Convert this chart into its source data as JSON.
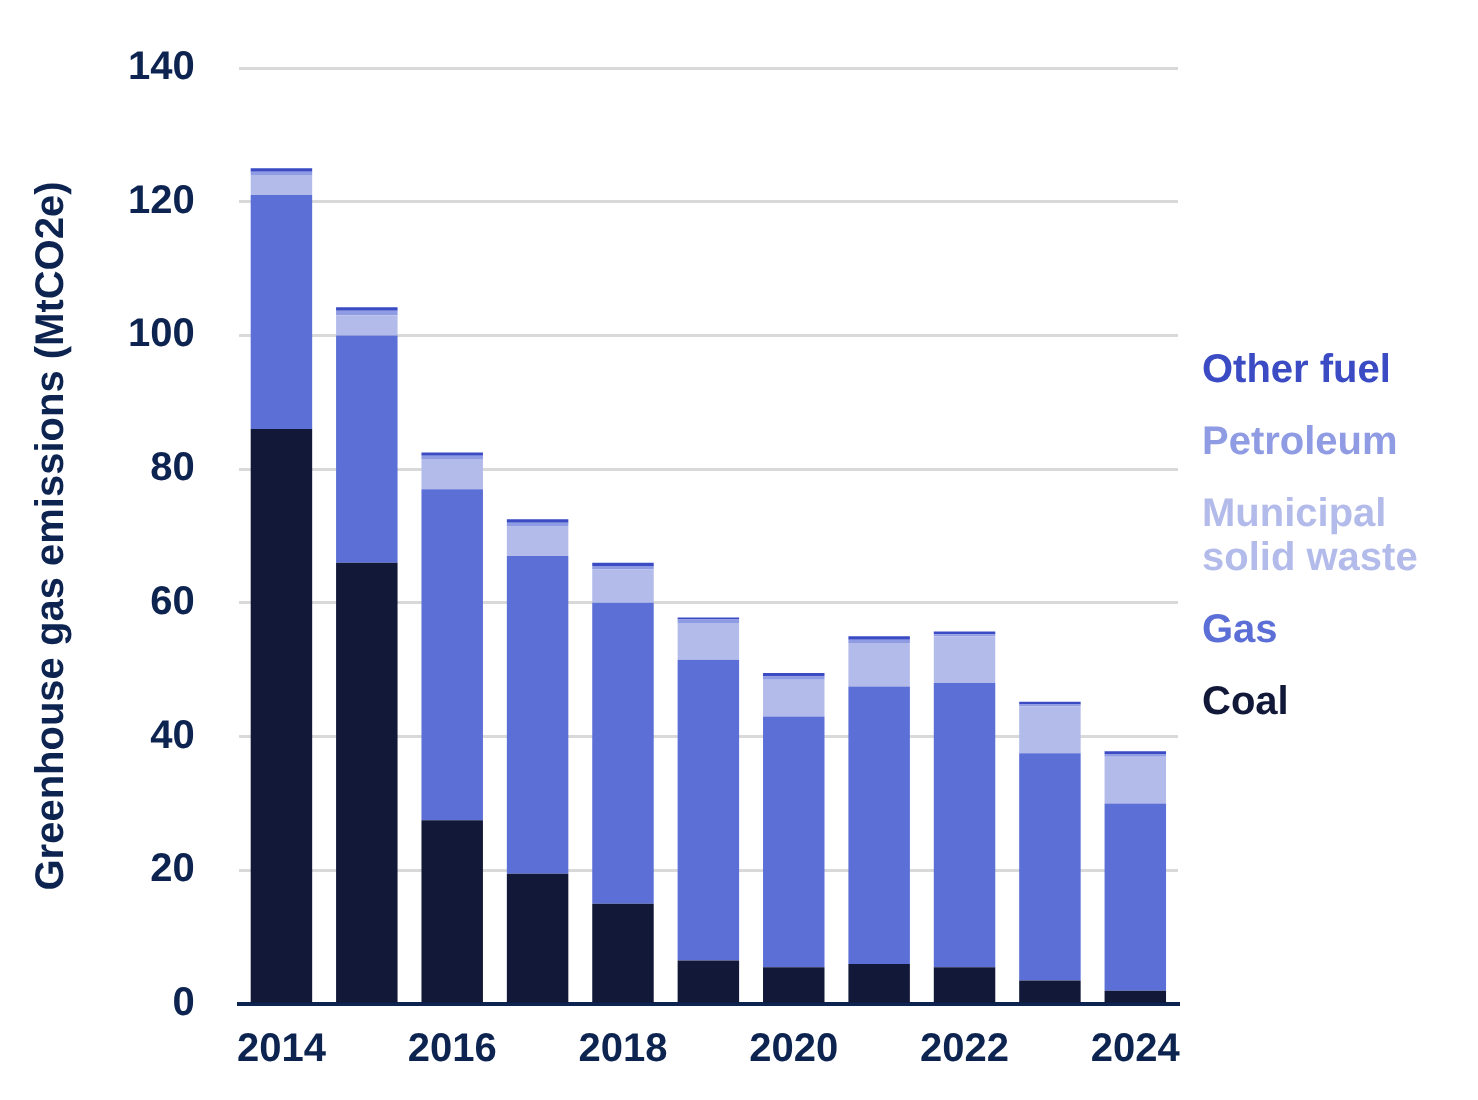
{
  "chart_data": {
    "type": "bar",
    "stacked": true,
    "ylabel": "Greenhouse gas emissions (MtCO2e)",
    "categories": [
      "2014",
      null,
      "2016",
      null,
      "2018",
      null,
      "2020",
      null,
      "2022",
      null,
      "2024"
    ],
    "series": [
      {
        "name": "Coal",
        "color": "#111838",
        "values": [
          86,
          66,
          27.5,
          19.5,
          15,
          6.5,
          5.5,
          6,
          5.5,
          3.5,
          2
        ]
      },
      {
        "name": "Gas",
        "color": "#5b6fd6",
        "values": [
          35,
          34,
          49.5,
          47.5,
          45,
          45,
          37.5,
          41.5,
          42.5,
          34,
          28
        ]
      },
      {
        "name": "Municipal solid waste",
        "color": "#b3bbeb",
        "values": [
          3,
          3,
          4.5,
          4.5,
          5,
          5.5,
          5.5,
          6.5,
          7,
          7,
          7
        ]
      },
      {
        "name": "Petroleum",
        "color": "#8f9be3",
        "values": [
          0.5,
          0.7,
          0.5,
          0.5,
          0.5,
          0.5,
          0.5,
          0.5,
          0.3,
          0.3,
          0.3
        ]
      },
      {
        "name": "Other fuel",
        "color": "#3a4bc4",
        "values": [
          0.5,
          0.5,
          0.5,
          0.5,
          0.5,
          0.3,
          0.5,
          0.5,
          0.4,
          0.4,
          0.5
        ]
      }
    ],
    "ylim": [
      0,
      140
    ],
    "yticks": [
      0,
      20,
      40,
      60,
      80,
      100,
      120,
      140
    ],
    "grid": "y",
    "legend": "right"
  }
}
